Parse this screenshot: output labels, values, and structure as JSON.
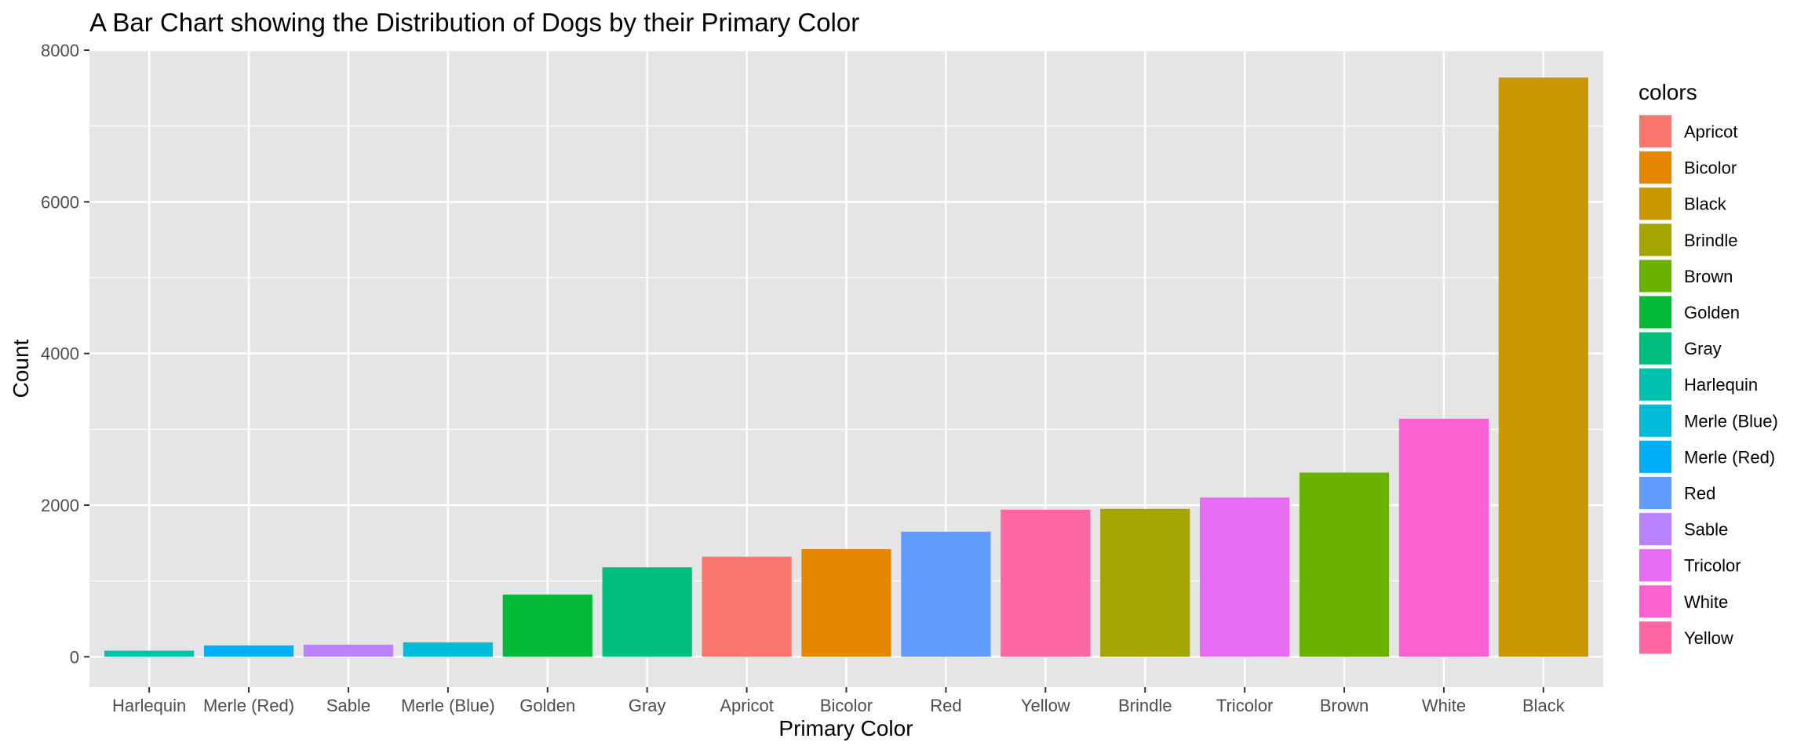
{
  "chart_data": {
    "type": "bar",
    "title": "A Bar Chart showing the Distribution of Dogs by their Primary Color",
    "xlabel": "Primary Color",
    "ylabel": "Count",
    "ylim": [
      -400,
      8000
    ],
    "yticks": [
      0,
      2000,
      4000,
      6000,
      8000
    ],
    "grid": true,
    "legend_position": "right",
    "legend_title": "colors",
    "categories": [
      "Harlequin",
      "Merle (Red)",
      "Sable",
      "Merle (Blue)",
      "Golden",
      "Gray",
      "Apricot",
      "Bicolor",
      "Red",
      "Yellow",
      "Brindle",
      "Tricolor",
      "Brown",
      "White",
      "Black"
    ],
    "values": [
      80,
      150,
      160,
      190,
      820,
      1180,
      1320,
      1420,
      1650,
      1940,
      1950,
      2100,
      2430,
      3140,
      7640
    ],
    "bar_colors": {
      "Apricot": "#F8766D",
      "Bicolor": "#E58700",
      "Black": "#C99800",
      "Brindle": "#A3A500",
      "Brown": "#6BB100",
      "Golden": "#00BA38",
      "Gray": "#00BF7D",
      "Harlequin": "#00C0AF",
      "Merle (Blue)": "#00BCD8",
      "Merle (Red)": "#00B0F6",
      "Red": "#619CFF",
      "Sable": "#B983FF",
      "Tricolor": "#E76BF3",
      "White": "#FD61D1",
      "Yellow": "#FF67A4"
    },
    "legend": [
      "Apricot",
      "Bicolor",
      "Black",
      "Brindle",
      "Brown",
      "Golden",
      "Gray",
      "Harlequin",
      "Merle (Blue)",
      "Merle (Red)",
      "Red",
      "Sable",
      "Tricolor",
      "White",
      "Yellow"
    ]
  },
  "theme": {
    "panel_background": "#E5E5E5",
    "gridline_color": "#FFFFFF",
    "tick_label_color": "#4D4D4D"
  }
}
